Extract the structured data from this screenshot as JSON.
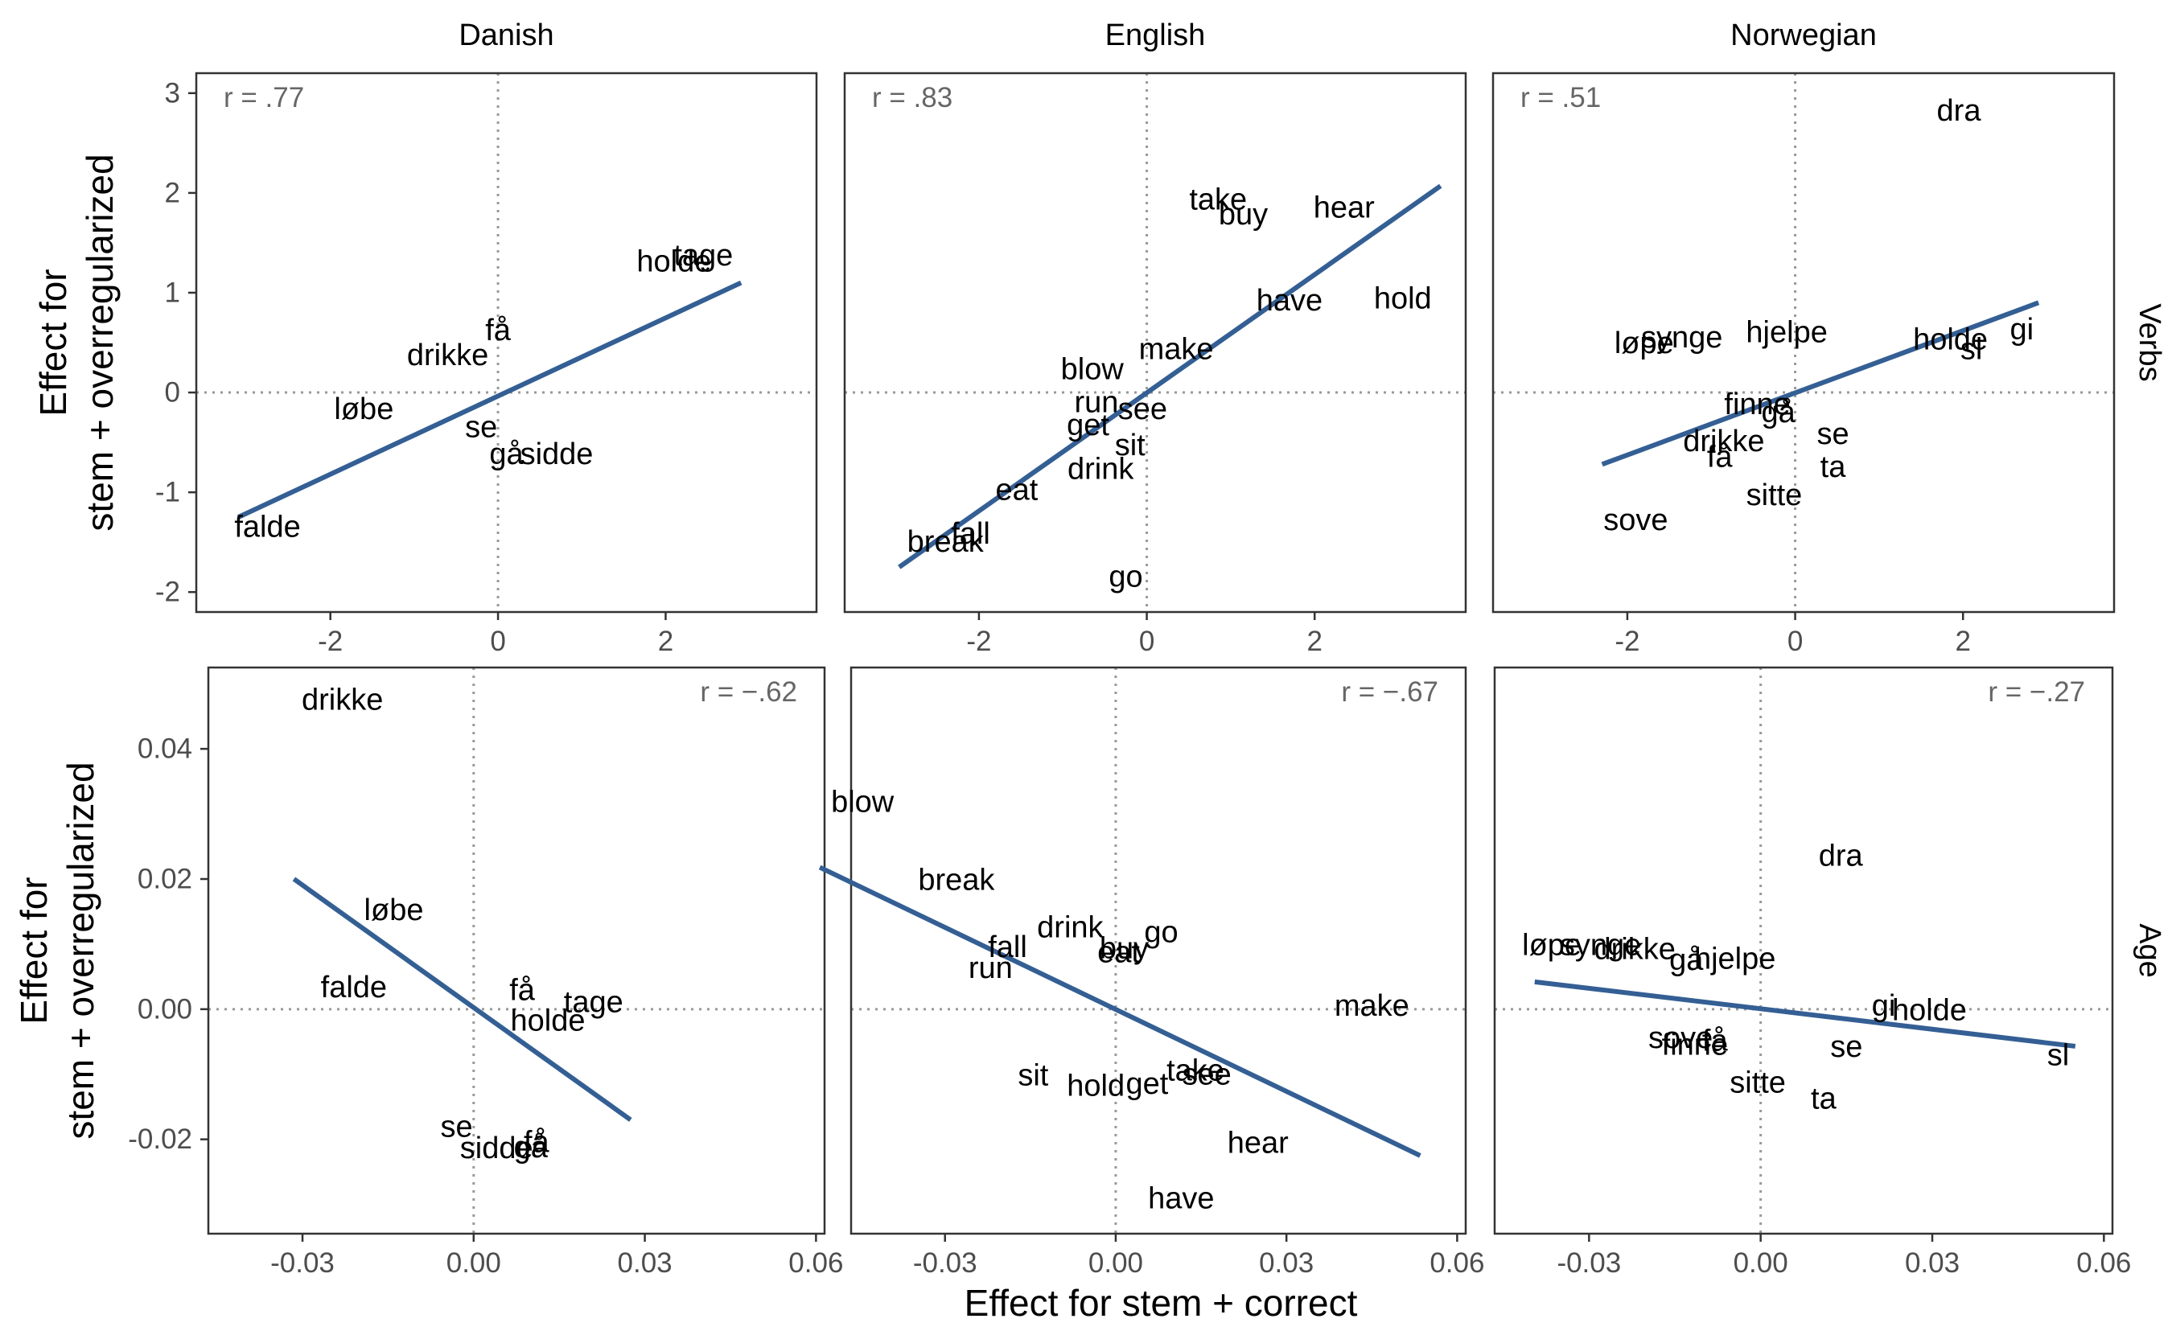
{
  "figure": {
    "x_axis_title": "Effect for stem + correct",
    "y_axis_title_lines": [
      "Effect for",
      "stem + overregularized"
    ],
    "column_labels": [
      "Danish",
      "English",
      "Norwegian"
    ],
    "row_labels": [
      "Verbs",
      "Age"
    ]
  },
  "colors": {
    "line": "#345f94",
    "text": "#000000",
    "corr": "#666666",
    "zero": "#999999",
    "frame": "#333333"
  },
  "chart_data": [
    {
      "type": "scatter",
      "facet_col": "Danish",
      "facet_row": "Verbs",
      "annotation": "r = .77",
      "xlim": [
        -3.6,
        3.8
      ],
      "ylim": [
        -2.2,
        3.2
      ],
      "x_ticks": [
        -2,
        0,
        2
      ],
      "x_tick_labels": [
        "-2",
        "0",
        "2"
      ],
      "y_ticks": [
        -2,
        -1,
        0,
        1,
        2,
        3
      ],
      "y_tick_labels": [
        "-2",
        "-1",
        "0",
        "1",
        "2",
        "3"
      ],
      "points": [
        {
          "label": "tage",
          "x": 2.45,
          "y": 1.37
        },
        {
          "label": "holde",
          "x": 2.1,
          "y": 1.31
        },
        {
          "label": "få",
          "x": 0.0,
          "y": 0.62
        },
        {
          "label": "drikke",
          "x": -0.6,
          "y": 0.37
        },
        {
          "label": "løbe",
          "x": -1.6,
          "y": -0.17
        },
        {
          "label": "se",
          "x": -0.2,
          "y": -0.35
        },
        {
          "label": "gå",
          "x": 0.1,
          "y": -0.62
        },
        {
          "label": "sidde",
          "x": 0.7,
          "y": -0.62
        },
        {
          "label": "falde",
          "x": -2.75,
          "y": -1.35
        }
      ],
      "fit": [
        [
          -3.1,
          -1.25
        ],
        [
          2.9,
          1.1
        ]
      ]
    },
    {
      "type": "scatter",
      "facet_col": "English",
      "facet_row": "Verbs",
      "annotation": "r = .83",
      "xlim": [
        -3.6,
        3.8
      ],
      "ylim": [
        -2.2,
        3.2
      ],
      "x_ticks": [
        -2,
        0,
        2
      ],
      "x_tick_labels": [
        "-2",
        "0",
        "2"
      ],
      "points": [
        {
          "label": "take",
          "x": 0.85,
          "y": 1.93
        },
        {
          "label": "buy",
          "x": 1.15,
          "y": 1.78
        },
        {
          "label": "hear",
          "x": 2.35,
          "y": 1.85
        },
        {
          "label": "have",
          "x": 1.7,
          "y": 0.92
        },
        {
          "label": "hold",
          "x": 3.05,
          "y": 0.94
        },
        {
          "label": "make",
          "x": 0.35,
          "y": 0.43
        },
        {
          "label": "blow",
          "x": -0.65,
          "y": 0.23
        },
        {
          "label": "run",
          "x": -0.6,
          "y": -0.1
        },
        {
          "label": "see",
          "x": -0.05,
          "y": -0.17
        },
        {
          "label": "get",
          "x": -0.7,
          "y": -0.33
        },
        {
          "label": "sit",
          "x": -0.2,
          "y": -0.53
        },
        {
          "label": "drink",
          "x": -0.55,
          "y": -0.77
        },
        {
          "label": "eat",
          "x": -1.55,
          "y": -0.98
        },
        {
          "label": "fall",
          "x": -2.1,
          "y": -1.42
        },
        {
          "label": "break",
          "x": -2.4,
          "y": -1.5
        },
        {
          "label": "go",
          "x": -0.25,
          "y": -1.85
        }
      ],
      "fit": [
        [
          -2.95,
          -1.75
        ],
        [
          3.5,
          2.07
        ]
      ]
    },
    {
      "type": "scatter",
      "facet_col": "Norwegian",
      "facet_row": "Verbs",
      "annotation": "r = .51",
      "xlim": [
        -3.6,
        3.8
      ],
      "ylim": [
        -2.2,
        3.2
      ],
      "x_ticks": [
        -2,
        0,
        2
      ],
      "x_tick_labels": [
        "-2",
        "0",
        "2"
      ],
      "points": [
        {
          "label": "dra",
          "x": 1.95,
          "y": 2.82
        },
        {
          "label": "gi",
          "x": 2.7,
          "y": 0.63
        },
        {
          "label": "hjelpe",
          "x": -0.1,
          "y": 0.6
        },
        {
          "label": "holde",
          "x": 1.85,
          "y": 0.53
        },
        {
          "label": "sl",
          "x": 2.1,
          "y": 0.43
        },
        {
          "label": "synge",
          "x": -1.35,
          "y": 0.55
        },
        {
          "label": "løpe",
          "x": -1.8,
          "y": 0.49
        },
        {
          "label": "finne",
          "x": -0.45,
          "y": -0.12
        },
        {
          "label": "gå",
          "x": -0.2,
          "y": -0.2
        },
        {
          "label": "se",
          "x": 0.45,
          "y": -0.42
        },
        {
          "label": "drikke",
          "x": -0.85,
          "y": -0.49
        },
        {
          "label": "få",
          "x": -0.9,
          "y": -0.65
        },
        {
          "label": "ta",
          "x": 0.45,
          "y": -0.75
        },
        {
          "label": "sitte",
          "x": -0.25,
          "y": -1.03
        },
        {
          "label": "sove",
          "x": -1.9,
          "y": -1.28
        }
      ],
      "fit": [
        [
          -2.3,
          -0.72
        ],
        [
          2.9,
          0.9
        ]
      ]
    },
    {
      "type": "scatter",
      "facet_col": "Danish",
      "facet_row": "Age",
      "annotation": "r = −.62",
      "xlim": [
        -0.0465,
        0.0615
      ],
      "ylim": [
        -0.0345,
        0.0525
      ],
      "x_ticks": [
        -0.03,
        0.0,
        0.03,
        0.06
      ],
      "x_tick_labels": [
        "-0.03",
        "0.00",
        "0.03",
        "0.06"
      ],
      "y_ticks": [
        -0.02,
        0.0,
        0.02,
        0.04
      ],
      "y_tick_labels": [
        "-0.02",
        "0.00",
        "0.02",
        "0.04"
      ],
      "points": [
        {
          "label": "drikke",
          "x": -0.023,
          "y": 0.0475
        },
        {
          "label": "løbe",
          "x": -0.014,
          "y": 0.0152
        },
        {
          "label": "falde",
          "x": -0.021,
          "y": 0.0033
        },
        {
          "label": "få",
          "x": 0.0085,
          "y": 0.0029
        },
        {
          "label": "tage",
          "x": 0.021,
          "y": 0.001
        },
        {
          "label": "holde",
          "x": 0.013,
          "y": -0.0018
        },
        {
          "label": "se",
          "x": -0.003,
          "y": -0.0181
        },
        {
          "label": "sidde",
          "x": 0.004,
          "y": -0.0214
        },
        {
          "label": "få",
          "x": 0.011,
          "y": -0.0205
        },
        {
          "label": "gå",
          "x": 0.01,
          "y": -0.0213
        }
      ],
      "fit": [
        [
          -0.0315,
          0.02
        ],
        [
          0.0275,
          -0.017
        ]
      ]
    },
    {
      "type": "scatter",
      "facet_col": "English",
      "facet_row": "Age",
      "annotation": "r = −.67",
      "xlim": [
        -0.0465,
        0.0615
      ],
      "ylim": [
        -0.0345,
        0.0525
      ],
      "x_ticks": [
        -0.03,
        0.0,
        0.03,
        0.06
      ],
      "x_tick_labels": [
        "-0.03",
        "0.00",
        "0.03",
        "0.06"
      ],
      "points": [
        {
          "label": "blow",
          "x": -0.0445,
          "y": 0.0318
        },
        {
          "label": "break",
          "x": -0.028,
          "y": 0.0198
        },
        {
          "label": "drink",
          "x": -0.008,
          "y": 0.0125
        },
        {
          "label": "go",
          "x": 0.008,
          "y": 0.0118
        },
        {
          "label": "buy",
          "x": 0.0015,
          "y": 0.0093
        },
        {
          "label": "eat",
          "x": 0.0005,
          "y": 0.0087
        },
        {
          "label": "fall",
          "x": -0.019,
          "y": 0.0095
        },
        {
          "label": "run",
          "x": -0.022,
          "y": 0.0063
        },
        {
          "label": "make",
          "x": 0.045,
          "y": 0.0005
        },
        {
          "label": "sit",
          "x": -0.0145,
          "y": -0.0102
        },
        {
          "label": "hold",
          "x": -0.0035,
          "y": -0.0118
        },
        {
          "label": "get",
          "x": 0.0055,
          "y": -0.0115
        },
        {
          "label": "take",
          "x": 0.014,
          "y": -0.0095
        },
        {
          "label": "see",
          "x": 0.016,
          "y": -0.0101
        },
        {
          "label": "hear",
          "x": 0.025,
          "y": -0.0206
        },
        {
          "label": "have",
          "x": 0.0115,
          "y": -0.0291
        }
      ],
      "fit": [
        [
          -0.052,
          0.0218
        ],
        [
          0.0535,
          -0.0225
        ]
      ]
    },
    {
      "type": "scatter",
      "facet_col": "Norwegian",
      "facet_row": "Age",
      "annotation": "r = −.27",
      "xlim": [
        -0.0465,
        0.0615
      ],
      "ylim": [
        -0.0345,
        0.0525
      ],
      "x_ticks": [
        -0.03,
        0.0,
        0.03,
        0.06
      ],
      "x_tick_labels": [
        "-0.03",
        "0.00",
        "0.03",
        "0.06"
      ],
      "points": [
        {
          "label": "dra",
          "x": 0.014,
          "y": 0.0235
        },
        {
          "label": "løpe",
          "x": -0.0365,
          "y": 0.0098
        },
        {
          "label": "synge",
          "x": -0.028,
          "y": 0.0098
        },
        {
          "label": "drikke",
          "x": -0.022,
          "y": 0.0092
        },
        {
          "label": "gå",
          "x": -0.013,
          "y": 0.0075
        },
        {
          "label": "hjelpe",
          "x": -0.0045,
          "y": 0.0077
        },
        {
          "label": "gi",
          "x": 0.0215,
          "y": 0.0005
        },
        {
          "label": "holde",
          "x": 0.0295,
          "y": -0.0002
        },
        {
          "label": "sove",
          "x": -0.014,
          "y": -0.0045
        },
        {
          "label": "finne",
          "x": -0.0115,
          "y": -0.0055
        },
        {
          "label": "få",
          "x": -0.008,
          "y": -0.0049
        },
        {
          "label": "se",
          "x": 0.015,
          "y": -0.0058
        },
        {
          "label": "sl",
          "x": 0.052,
          "y": -0.0071
        },
        {
          "label": "sitte",
          "x": -0.0005,
          "y": -0.0113
        },
        {
          "label": "ta",
          "x": 0.011,
          "y": -0.0138
        }
      ],
      "fit": [
        [
          -0.0395,
          0.0042
        ],
        [
          0.055,
          -0.0057
        ]
      ]
    }
  ]
}
